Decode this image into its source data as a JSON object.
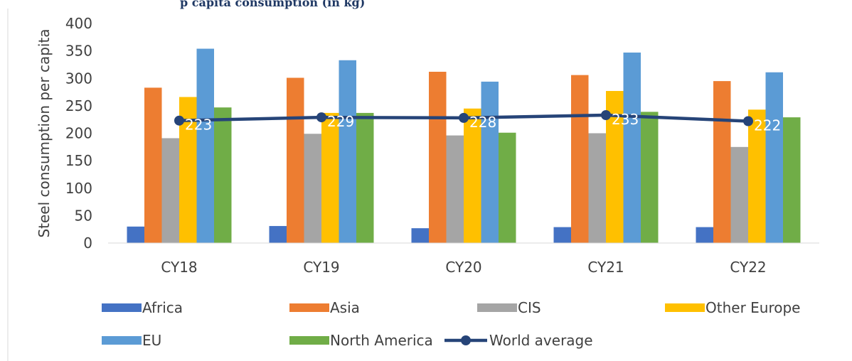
{
  "title_fragment": "p capita consumption (in kg)",
  "chart_data": {
    "type": "bar",
    "categories": [
      "CY18",
      "CY19",
      "CY20",
      "CY21",
      "CY22"
    ],
    "ylabel": "Steel consumption per capita",
    "ylim": [
      0,
      400
    ],
    "yticks": [
      0,
      50,
      100,
      150,
      200,
      250,
      300,
      350,
      400
    ],
    "grid": false,
    "legend_position": "bottom",
    "series": [
      {
        "name": "Africa",
        "type": "bar",
        "color": "#4472c4",
        "values": [
          30,
          31,
          27,
          29,
          29
        ]
      },
      {
        "name": "Asia",
        "type": "bar",
        "color": "#ed7d31",
        "values": [
          283,
          301,
          312,
          306,
          295
        ]
      },
      {
        "name": "CIS",
        "type": "bar",
        "color": "#a5a5a5",
        "values": [
          191,
          199,
          196,
          200,
          175
        ]
      },
      {
        "name": "Other Europe",
        "type": "bar",
        "color": "#ffc000",
        "values": [
          266,
          237,
          245,
          277,
          243
        ]
      },
      {
        "name": "EU",
        "type": "bar",
        "color": "#5b9bd5",
        "values": [
          354,
          333,
          294,
          347,
          311
        ]
      },
      {
        "name": "North America",
        "type": "bar",
        "color": "#70ad47",
        "values": [
          247,
          237,
          201,
          239,
          229
        ]
      },
      {
        "name": "World average",
        "type": "line",
        "color": "#264478",
        "values": [
          223,
          229,
          228,
          233,
          222
        ],
        "labels": [
          "223",
          "229",
          "228",
          "233",
          "222"
        ]
      }
    ]
  }
}
